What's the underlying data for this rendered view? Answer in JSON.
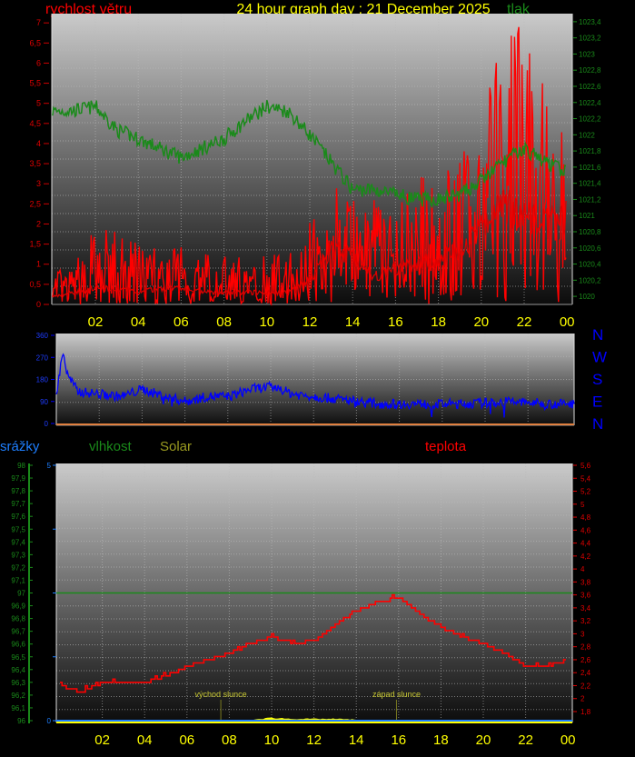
{
  "header": {
    "wind_speed_title": "rychlost větru",
    "main_title": "24 hour graph day : 21 December 2025",
    "pressure_title": "tlak"
  },
  "colors": {
    "wind_speed": "#ff0000",
    "pressure": "#1a8a1a",
    "wind_direction": "#0000ff",
    "rain": "#1e7fff",
    "humidity": "#1a8a1a",
    "solar": "#ffff00",
    "solar_label": "#9a9a20",
    "temperature": "#ff0000",
    "time_labels": "#ffff00"
  },
  "chart_data": [
    {
      "id": "wind-pressure",
      "type": "line",
      "title": "24 hour graph day : 21 December 2025",
      "x_ticks": [
        "02",
        "04",
        "06",
        "08",
        "10",
        "12",
        "14",
        "16",
        "18",
        "20",
        "22",
        "00"
      ],
      "xlim_hours": [
        0,
        24
      ],
      "left_axis": {
        "label": "rychlost větru",
        "ylim": [
          0,
          7.23
        ],
        "ticks": [
          "0",
          "0,5",
          "1",
          "1,5",
          "2",
          "2,5",
          "3",
          "3,5",
          "4",
          "4,5",
          "5",
          "5,5",
          "6",
          "6,5",
          "7"
        ]
      },
      "right_axis": {
        "label": "tlak",
        "ylim": [
          1019.9,
          1023.5
        ],
        "ticks": [
          "1020",
          "1020,2",
          "1020,4",
          "1020,6",
          "1020,8",
          "1021",
          "1021,2",
          "1021,4",
          "1021,6",
          "1021,8",
          "1022",
          "1022,2",
          "1022,4",
          "1022,6",
          "1022,8",
          "1023",
          "1023,2",
          "1023,4"
        ]
      },
      "hours": [
        0,
        1,
        2,
        3,
        4,
        5,
        6,
        7,
        8,
        9,
        10,
        11,
        12,
        13,
        14,
        15,
        16,
        17,
        18,
        19,
        20,
        21,
        22,
        23,
        24
      ],
      "series": [
        {
          "name": "rychlost větru",
          "axis": "left",
          "kind": "average",
          "values": [
            0.2,
            0.3,
            0.4,
            0.4,
            0.3,
            0.4,
            0.4,
            0.3,
            0.3,
            0.3,
            0.3,
            0.3,
            0.6,
            1.4,
            1.2,
            0.7,
            0.9,
            1.0,
            1.1,
            1.4,
            1.9,
            2.4,
            2.3,
            2.0,
            2.2
          ]
        },
        {
          "name": "rychlost větru",
          "axis": "left",
          "kind": "gust",
          "values": [
            0.8,
            1.0,
            2.0,
            1.8,
            1.6,
            1.4,
            1.5,
            1.4,
            1.3,
            1.3,
            1.4,
            1.3,
            2.2,
            3.0,
            2.8,
            2.6,
            3.0,
            3.2,
            3.5,
            3.8,
            4.6,
            6.8,
            7.2,
            5.6,
            5.2
          ]
        },
        {
          "name": "tlak",
          "axis": "right",
          "values": [
            1022.29,
            1022.3,
            1022.35,
            1022.06,
            1021.95,
            1021.83,
            1021.72,
            1021.83,
            1021.95,
            1022.17,
            1022.35,
            1022.29,
            1022.0,
            1021.66,
            1021.32,
            1021.32,
            1021.26,
            1021.2,
            1021.2,
            1021.26,
            1021.43,
            1021.66,
            1021.83,
            1021.66,
            1021.54
          ]
        }
      ]
    },
    {
      "id": "wind-direction",
      "type": "line",
      "ylim": [
        0,
        360
      ],
      "y_ticks": [
        "0",
        "90",
        "180",
        "270",
        "360"
      ],
      "direction_labels": [
        "N",
        "W",
        "S",
        "E",
        "N"
      ],
      "hours": [
        0,
        0.3,
        0.5,
        1,
        2,
        3,
        4,
        5,
        6,
        7,
        8,
        9,
        10,
        11,
        12,
        13,
        14,
        15,
        16,
        17,
        18,
        19,
        20,
        21,
        22,
        23,
        24
      ],
      "series": [
        {
          "name": "wind direction",
          "values": [
            110,
            300,
            200,
            130,
            120,
            110,
            140,
            110,
            90,
            110,
            110,
            140,
            150,
            120,
            110,
            100,
            90,
            80,
            80,
            80,
            80,
            80,
            85,
            90,
            85,
            80,
            80
          ]
        }
      ]
    },
    {
      "id": "temp-humidity",
      "type": "line",
      "x_ticks": [
        "02",
        "04",
        "06",
        "08",
        "10",
        "12",
        "14",
        "16",
        "18",
        "20",
        "22",
        "00"
      ],
      "xlim_hours": [
        0,
        24
      ],
      "rain_axis": {
        "label": "srážky",
        "ylim": [
          0,
          5
        ],
        "ticks": [
          "0",
          "5"
        ]
      },
      "humidity_axis": {
        "label": "vlhkost",
        "ylim": [
          96,
          98
        ],
        "ticks": [
          "96",
          "96,1",
          "96,2",
          "96,3",
          "96,4",
          "96,5",
          "96,6",
          "96,7",
          "96,8",
          "96,9",
          "97",
          "97,1",
          "97,2",
          "97,3",
          "97,4",
          "97,5",
          "97,6",
          "97,7",
          "97,8",
          "97,9",
          "98"
        ]
      },
      "solar_label": "Solar",
      "temperature_axis": {
        "label": "teplota",
        "ylim": [
          1.66,
          5.66
        ],
        "ticks": [
          "1,8",
          "2",
          "2,2",
          "2,4",
          "2,6",
          "2,8",
          "3",
          "3,2",
          "3,4",
          "3,6",
          "3,8",
          "4",
          "4,2",
          "4,4",
          "4,6",
          "4,8",
          "5",
          "5,2",
          "5,4",
          "5,6"
        ]
      },
      "annotations": [
        {
          "text": "východ slunce",
          "hour": 7.6
        },
        {
          "text": "západ slunce",
          "hour": 15.9
        }
      ],
      "hours": [
        0,
        1,
        2,
        3,
        4,
        5,
        6,
        7,
        8,
        9,
        10,
        11,
        12,
        13,
        14,
        15,
        16,
        17,
        18,
        19,
        20,
        21,
        22,
        23,
        24
      ],
      "series": [
        {
          "name": "teplota",
          "values": [
            2.2,
            2.1,
            2.25,
            2.25,
            2.25,
            2.35,
            2.5,
            2.6,
            2.7,
            2.85,
            2.95,
            2.85,
            2.9,
            3.15,
            3.35,
            3.5,
            3.55,
            3.3,
            3.1,
            2.95,
            2.85,
            2.7,
            2.5,
            2.5,
            2.6
          ]
        },
        {
          "name": "vlhkost",
          "values": [
            97,
            97,
            97,
            97,
            97,
            97,
            97,
            97,
            97,
            97,
            97,
            97,
            97,
            97,
            97,
            97,
            97,
            97,
            97,
            97,
            97,
            97,
            97,
            97,
            97
          ]
        },
        {
          "name": "srážky",
          "values": [
            0,
            0,
            0,
            0,
            0,
            0,
            0,
            0,
            0,
            0,
            0,
            0,
            0,
            0,
            0,
            0,
            0,
            0,
            0,
            0,
            0,
            0,
            0,
            0,
            0
          ]
        },
        {
          "name": "Solar",
          "values": [
            0,
            0,
            0,
            0,
            0,
            0,
            0,
            0,
            0,
            0.02,
            0.08,
            0.05,
            0.05,
            0.05,
            0.03,
            0,
            0,
            0,
            0,
            0,
            0,
            0,
            0,
            0,
            0
          ]
        }
      ]
    }
  ]
}
